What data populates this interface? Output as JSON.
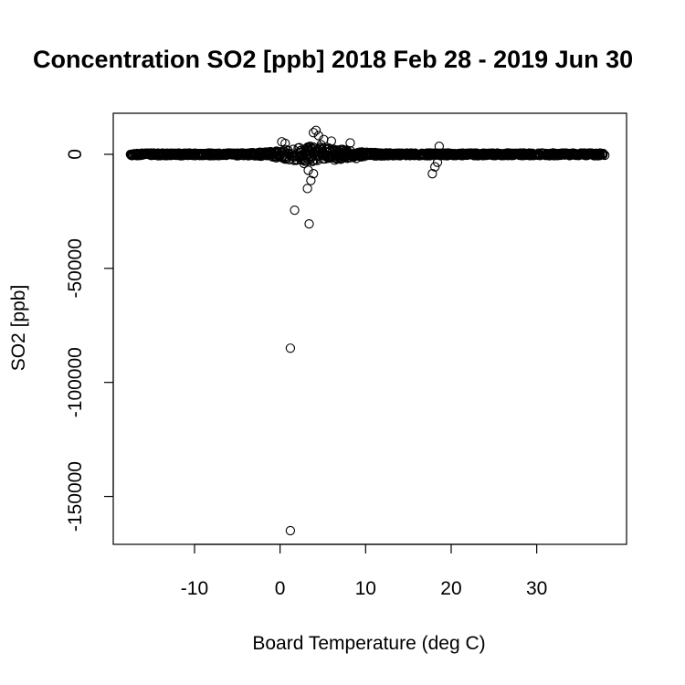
{
  "chart_data": {
    "type": "scatter",
    "title": "Concentration SO2 [ppb] 2018 Feb 28 - 2019 Jun 30",
    "xlabel": "Board Temperature (deg C)",
    "ylabel": "SO2 [ppb]",
    "xlim": [
      -19.5,
      40.5
    ],
    "ylim": [
      -171000,
      18000
    ],
    "xticks": [
      -10,
      0,
      10,
      20,
      30
    ],
    "xtick_labels": [
      "-10",
      "0",
      "10",
      "20",
      "30"
    ],
    "yticks": [
      0,
      -50000,
      -100000,
      -150000
    ],
    "ytick_labels": [
      "0",
      "-50000",
      "-100000",
      "-150000"
    ],
    "grid": false,
    "marker": "open-circle",
    "outliers": [
      [
        1.2,
        -165000
      ],
      [
        1.2,
        -85000
      ],
      [
        1.7,
        -24500
      ],
      [
        3.4,
        -30500
      ],
      [
        3.2,
        -15000
      ],
      [
        3.6,
        -11500
      ],
      [
        3.9,
        -8500
      ],
      [
        3.3,
        -7000
      ],
      [
        2.8,
        -4000
      ],
      [
        4.2,
        10500
      ],
      [
        3.9,
        9500
      ],
      [
        4.5,
        8200
      ],
      [
        0.2,
        5500
      ],
      [
        0.6,
        4800
      ],
      [
        5.1,
        6500
      ],
      [
        6.0,
        5800
      ],
      [
        8.2,
        5000
      ],
      [
        18.1,
        -5500
      ],
      [
        18.4,
        -3500
      ],
      [
        17.8,
        -8500
      ],
      [
        18.6,
        3500
      ],
      [
        8.9,
        -1800
      ],
      [
        3.5,
        3500
      ],
      [
        4.8,
        4200
      ]
    ],
    "band": {
      "x_range": [
        -17.5,
        38.0
      ],
      "y_center": 0,
      "y_spread_base": 600,
      "y_spread_peak": 3500,
      "peak_x": 4.0
    }
  }
}
